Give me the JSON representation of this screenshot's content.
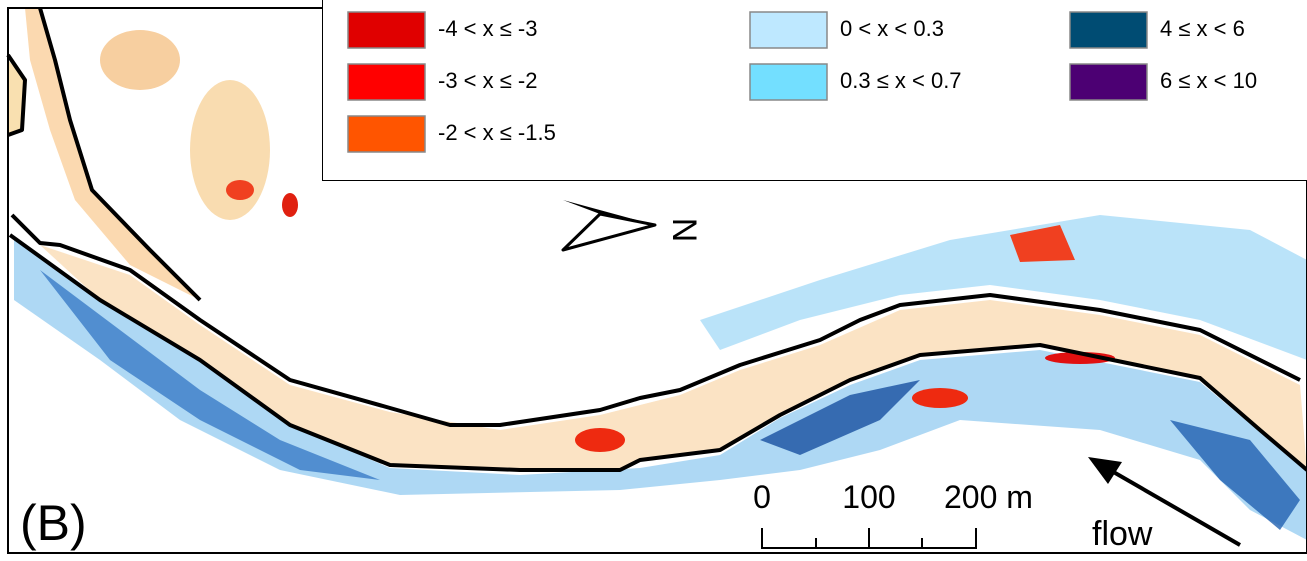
{
  "legend": {
    "columns": [
      [
        {
          "label": "-4 < x ≤ -3",
          "color": "#e00000"
        },
        {
          "label": "-3 < x ≤ -2",
          "color": "#ff0000"
        },
        {
          "label": "-2 < x ≤ -1.5",
          "color": "#ff5500"
        }
      ],
      [
        {
          "label": "0 < x < 0.3",
          "color": "#bee8ff"
        },
        {
          "label": "0.3 ≤ x < 0.7",
          "color": "#73dfff"
        }
      ],
      [
        {
          "label": "4 ≤ x < 6",
          "color": "#004c73"
        },
        {
          "label": "6 ≤ x < 10",
          "color": "#4c0073"
        }
      ]
    ]
  },
  "north_label": "N",
  "panel_label": "(B)",
  "scale_bar": {
    "labels": [
      "0",
      "100",
      "200 m"
    ]
  },
  "flow_label": "flow"
}
